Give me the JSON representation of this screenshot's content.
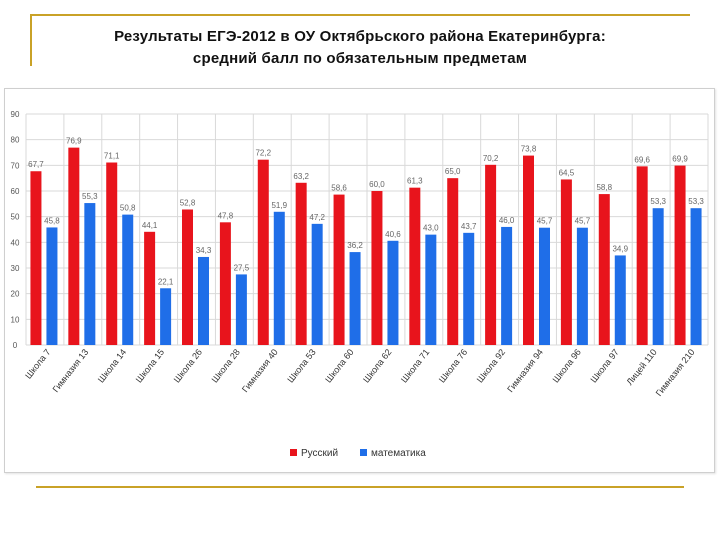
{
  "title": {
    "line1": "Результаты ЕГЭ-2012 в ОУ Октябрьского района Екатеринбурга:",
    "line2": "средний балл по обязательным предметам"
  },
  "colors": {
    "russian": "#e8141c",
    "math": "#1f6ee8",
    "grid": "#d9d9d9",
    "frame": "#c9a227"
  },
  "chart_data": {
    "type": "bar",
    "categories": [
      "Школа 7",
      "Гимназия 13",
      "Школа 14",
      "Школа 15",
      "Школа 26",
      "Школа 28",
      "Гимназия 40",
      "Школа 53",
      "Школа 60",
      "Школа 62",
      "Школа 71",
      "Школа 76",
      "Школа 92",
      "Гимназия 94",
      "Школа 96",
      "Школа 97",
      "Лицей 110",
      "Гимназия 210"
    ],
    "series": [
      {
        "name": "Русский",
        "values": [
          67.7,
          76.9,
          71.1,
          44.1,
          52.8,
          47.8,
          72.2,
          63.2,
          58.6,
          60.0,
          61.3,
          65.0,
          70.2,
          73.8,
          64.5,
          58.8,
          69.6,
          69.9
        ],
        "labels": [
          "67,7",
          "76,9",
          "71,1",
          "44,1",
          "52,8",
          "47,8",
          "72,2",
          "63,2",
          "58,6",
          "60,0",
          "61,3",
          "65,0",
          "70,2",
          "73,8",
          "64,5",
          "58,8",
          "69,6",
          "69,9"
        ]
      },
      {
        "name": "математика",
        "values": [
          45.8,
          55.3,
          50.8,
          22.1,
          34.3,
          27.5,
          51.9,
          47.2,
          36.2,
          40.6,
          43.0,
          43.7,
          46.0,
          45.7,
          45.7,
          34.9,
          53.3,
          53.3
        ],
        "labels": [
          "45,8",
          "55,3",
          "50,8",
          "22,1",
          "34,3",
          "27,5",
          "51,9",
          "47,2",
          "36,2",
          "40,6",
          "43,0",
          "43,7",
          "46,0",
          "45,7",
          "45,7",
          "34,9",
          "53,3",
          "53,3"
        ]
      }
    ],
    "yticks": [
      0,
      10,
      20,
      30,
      40,
      50,
      60,
      70,
      80,
      90
    ],
    "ylim": [
      0,
      90
    ],
    "grid": true,
    "legend_position": "bottom"
  }
}
